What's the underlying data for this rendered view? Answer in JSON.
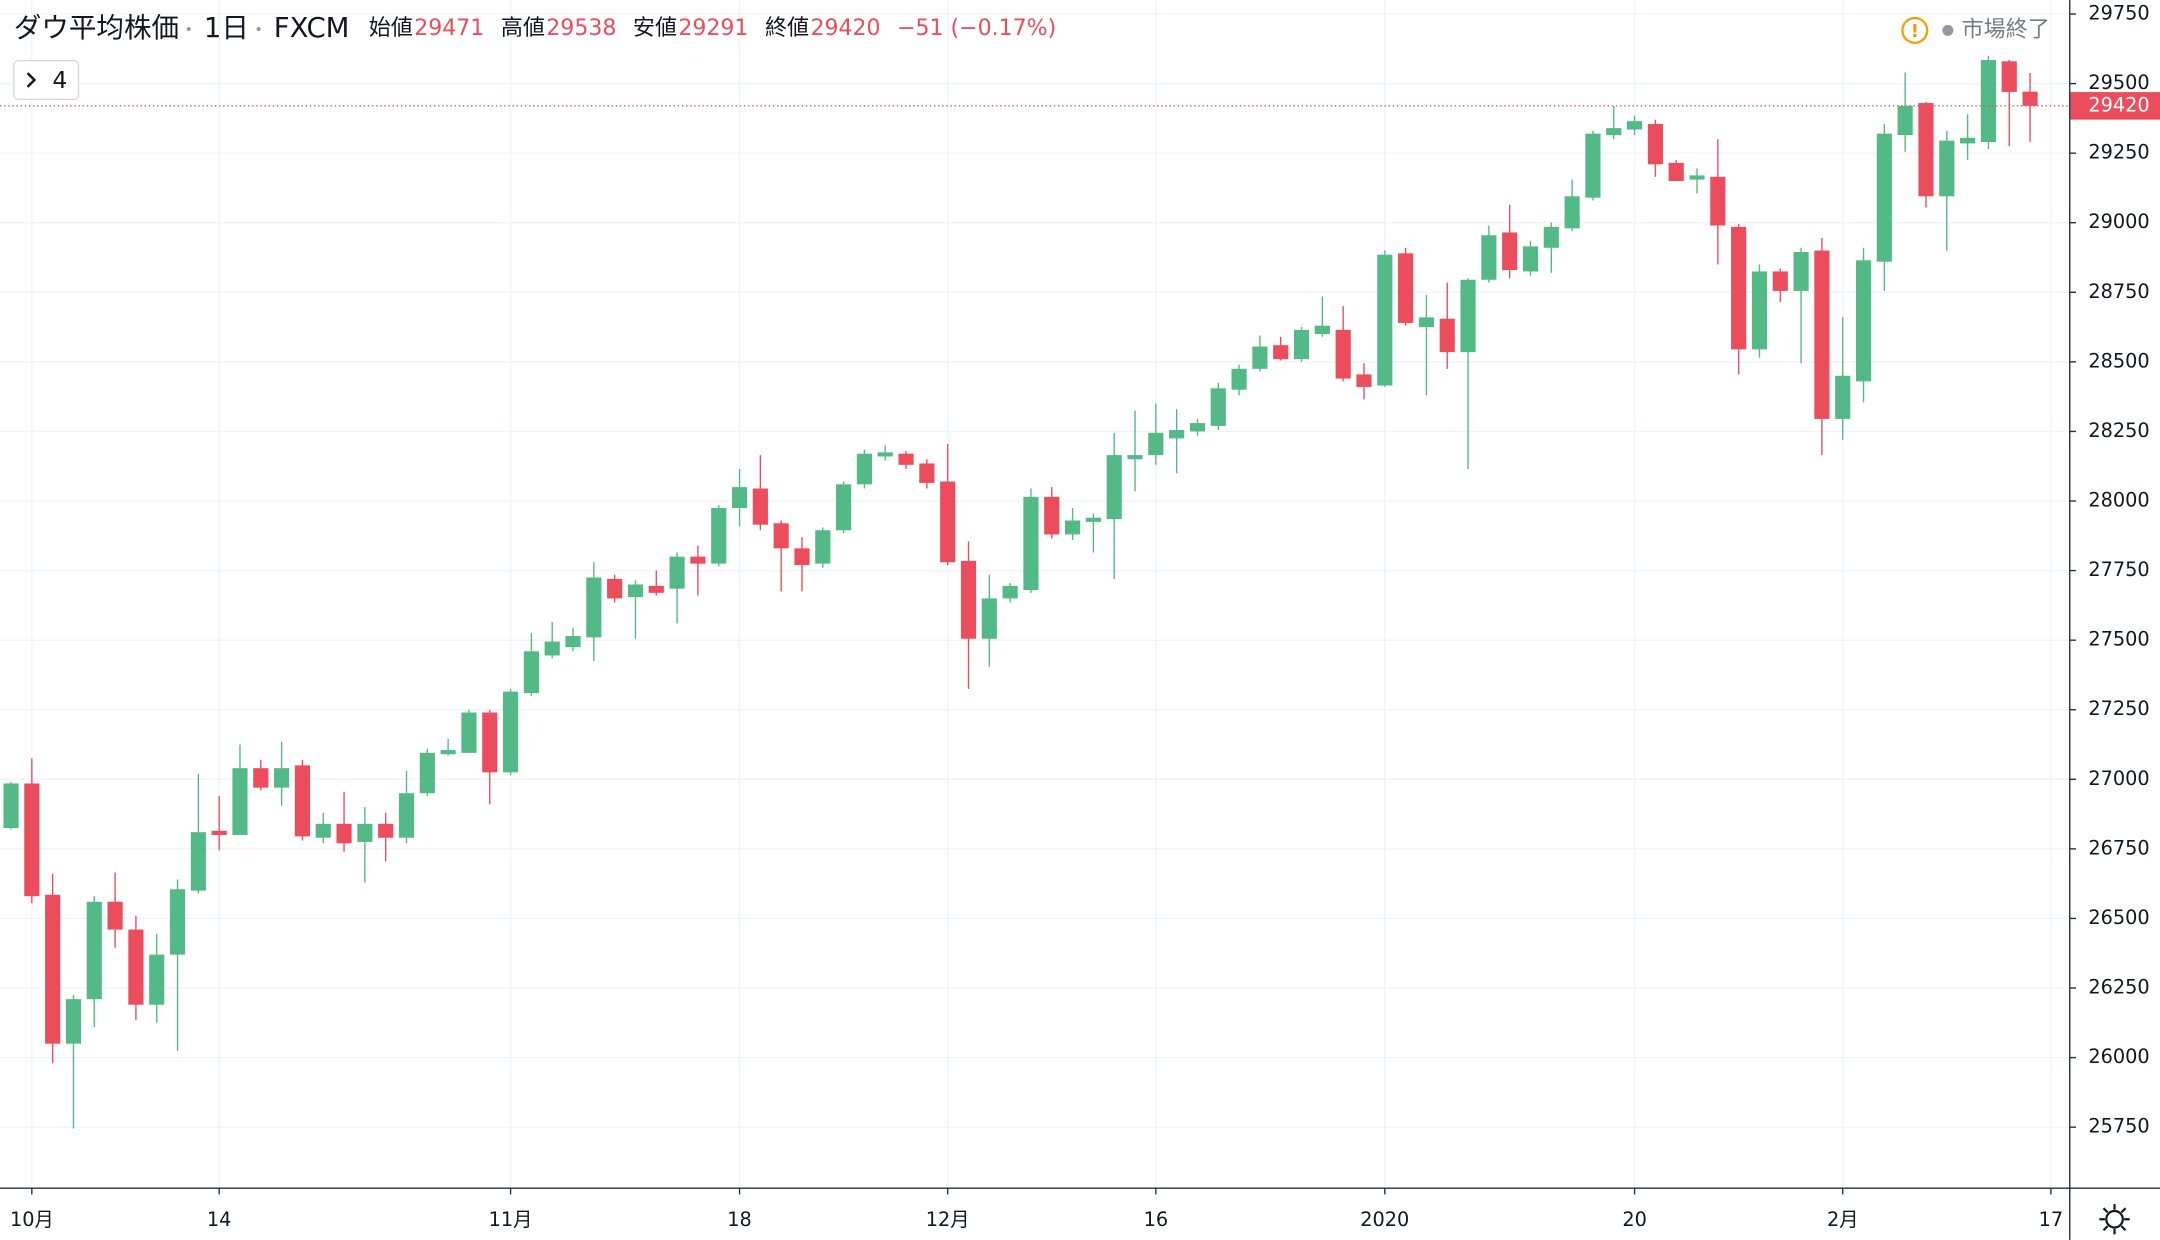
{
  "chart_data": {
    "type": "candlestick",
    "header": {
      "symbol": "ダウ平均株価",
      "interval": "1日",
      "source": "FXCM",
      "fields": [
        {
          "label": "始値",
          "value": "29471"
        },
        {
          "label": "高値",
          "value": "29538"
        },
        {
          "label": "安値",
          "value": "29291"
        },
        {
          "label": "終値",
          "value": "29420"
        }
      ],
      "change": "−51 (−0.17%)"
    },
    "market_status": "市場終了",
    "indicator_count": 4,
    "up_color": "#53b987",
    "down_color": "#eb4d5c",
    "grid": true,
    "ylim": [
      25533,
      29800
    ],
    "yticks": [
      25750,
      26000,
      26250,
      26500,
      26750,
      27000,
      27250,
      27500,
      27750,
      28000,
      28250,
      28500,
      28750,
      29000,
      29250,
      29500,
      29750
    ],
    "last_price": 29420,
    "categories": [
      null,
      "10月",
      null,
      null,
      null,
      null,
      null,
      null,
      null,
      null,
      "14",
      null,
      null,
      null,
      null,
      null,
      null,
      null,
      null,
      null,
      null,
      null,
      null,
      null,
      "11月",
      null,
      null,
      null,
      null,
      null,
      null,
      null,
      null,
      null,
      null,
      "18",
      null,
      null,
      null,
      null,
      null,
      null,
      null,
      null,
      null,
      "12月",
      null,
      null,
      null,
      null,
      null,
      null,
      null,
      null,
      null,
      "16",
      null,
      null,
      null,
      null,
      null,
      null,
      null,
      null,
      null,
      null,
      "2020",
      null,
      null,
      null,
      null,
      null,
      null,
      null,
      null,
      null,
      null,
      null,
      "20",
      null,
      null,
      null,
      null,
      null,
      null,
      null,
      null,
      null,
      "2月",
      null,
      null,
      null,
      null,
      null,
      null,
      null,
      null,
      null,
      "17"
    ],
    "open": [
      26825,
      26985,
      26585,
      26050,
      26210,
      26560,
      26460,
      26190,
      26370,
      26600,
      26815,
      26800,
      27040,
      26970,
      27050,
      26790,
      26840,
      26775,
      26840,
      26790,
      26950,
      27090,
      27095,
      27240,
      27025,
      27310,
      27445,
      27475,
      27510,
      27720,
      27655,
      27695,
      27685,
      27800,
      27775,
      27975,
      28045,
      27920,
      27830,
      27775,
      27895,
      28060,
      28160,
      28170,
      28135,
      28070,
      27785,
      27505,
      27650,
      27680,
      28015,
      27880,
      27925,
      27935,
      28150,
      28165,
      28225,
      28250,
      28270,
      28400,
      28475,
      28560,
      28510,
      28600,
      28615,
      28455,
      28415,
      28890,
      28625,
      28655,
      28535,
      28795,
      28965,
      28825,
      28910,
      28980,
      29090,
      29315,
      29335,
      29355,
      29215,
      29155,
      29165,
      28985,
      28545,
      28825,
      28755,
      28900,
      28295,
      28430,
      28860,
      29315,
      29430,
      29095,
      29285,
      29290,
      29580,
      29471,
      null
    ],
    "high": [
      26990,
      27075,
      26660,
      26225,
      26580,
      26665,
      26510,
      26445,
      26640,
      27020,
      26940,
      27125,
      27070,
      27135,
      27070,
      26880,
      26955,
      26900,
      26880,
      27030,
      27110,
      27145,
      27250,
      27250,
      27325,
      27525,
      27565,
      27545,
      27780,
      27735,
      27715,
      27750,
      27815,
      27840,
      27985,
      28115,
      28165,
      27930,
      27870,
      27905,
      28070,
      28185,
      28200,
      28180,
      28150,
      28205,
      27855,
      27735,
      27705,
      28045,
      28050,
      27975,
      27955,
      28245,
      28325,
      28350,
      28330,
      28295,
      28425,
      28490,
      28595,
      28590,
      28625,
      28735,
      28700,
      28495,
      28900,
      28910,
      28740,
      28785,
      28800,
      28990,
      29065,
      28935,
      29000,
      29155,
      29330,
      29420,
      29385,
      29370,
      29225,
      29195,
      29300,
      28995,
      28850,
      28835,
      28910,
      28945,
      28660,
      28910,
      29355,
      29540,
      29435,
      29330,
      29390,
      29600,
      29585,
      29538,
      null
    ],
    "low": [
      26820,
      26555,
      25980,
      25745,
      26110,
      26395,
      26135,
      26125,
      26025,
      26590,
      26745,
      26800,
      26960,
      26905,
      26780,
      26770,
      26740,
      26630,
      26705,
      26770,
      26940,
      27085,
      27095,
      26910,
      27015,
      27300,
      27435,
      27460,
      27425,
      27635,
      27505,
      27660,
      27560,
      27660,
      27765,
      27910,
      27895,
      27675,
      27675,
      27760,
      27885,
      28045,
      28145,
      28115,
      28045,
      27770,
      27325,
      27405,
      27635,
      27670,
      27865,
      27860,
      27815,
      27720,
      28035,
      28130,
      28100,
      28235,
      28255,
      28380,
      28465,
      28505,
      28500,
      28590,
      28430,
      28365,
      28410,
      28630,
      28380,
      28475,
      28115,
      28785,
      28800,
      28810,
      28820,
      28970,
      29080,
      29300,
      29315,
      29165,
      29150,
      29105,
      28850,
      28455,
      28515,
      28715,
      28495,
      28165,
      28220,
      28355,
      28755,
      29255,
      29055,
      28900,
      29225,
      29265,
      29275,
      29291,
      null
    ],
    "close": [
      26985,
      26580,
      26050,
      26210,
      26560,
      26460,
      26190,
      26370,
      26605,
      26810,
      26800,
      27040,
      26970,
      27040,
      26795,
      26840,
      26770,
      26840,
      26790,
      26950,
      27095,
      27105,
      27240,
      27025,
      27315,
      27460,
      27495,
      27515,
      27725,
      27650,
      27700,
      27670,
      27800,
      27775,
      27975,
      28050,
      27915,
      27830,
      27770,
      27895,
      28060,
      28170,
      28175,
      28130,
      28065,
      27780,
      27505,
      27650,
      27695,
      28015,
      27880,
      27930,
      27940,
      28165,
      28165,
      28245,
      28255,
      28280,
      28405,
      28475,
      28555,
      28510,
      28615,
      28630,
      28440,
      28410,
      28885,
      28640,
      28660,
      28535,
      28795,
      28955,
      28830,
      28915,
      28985,
      29095,
      29320,
      29340,
      29365,
      29210,
      29150,
      29170,
      28990,
      28545,
      28825,
      28755,
      28895,
      28295,
      28450,
      28865,
      29320,
      29420,
      29095,
      29295,
      29305,
      29585,
      29470,
      29420,
      null
    ]
  }
}
